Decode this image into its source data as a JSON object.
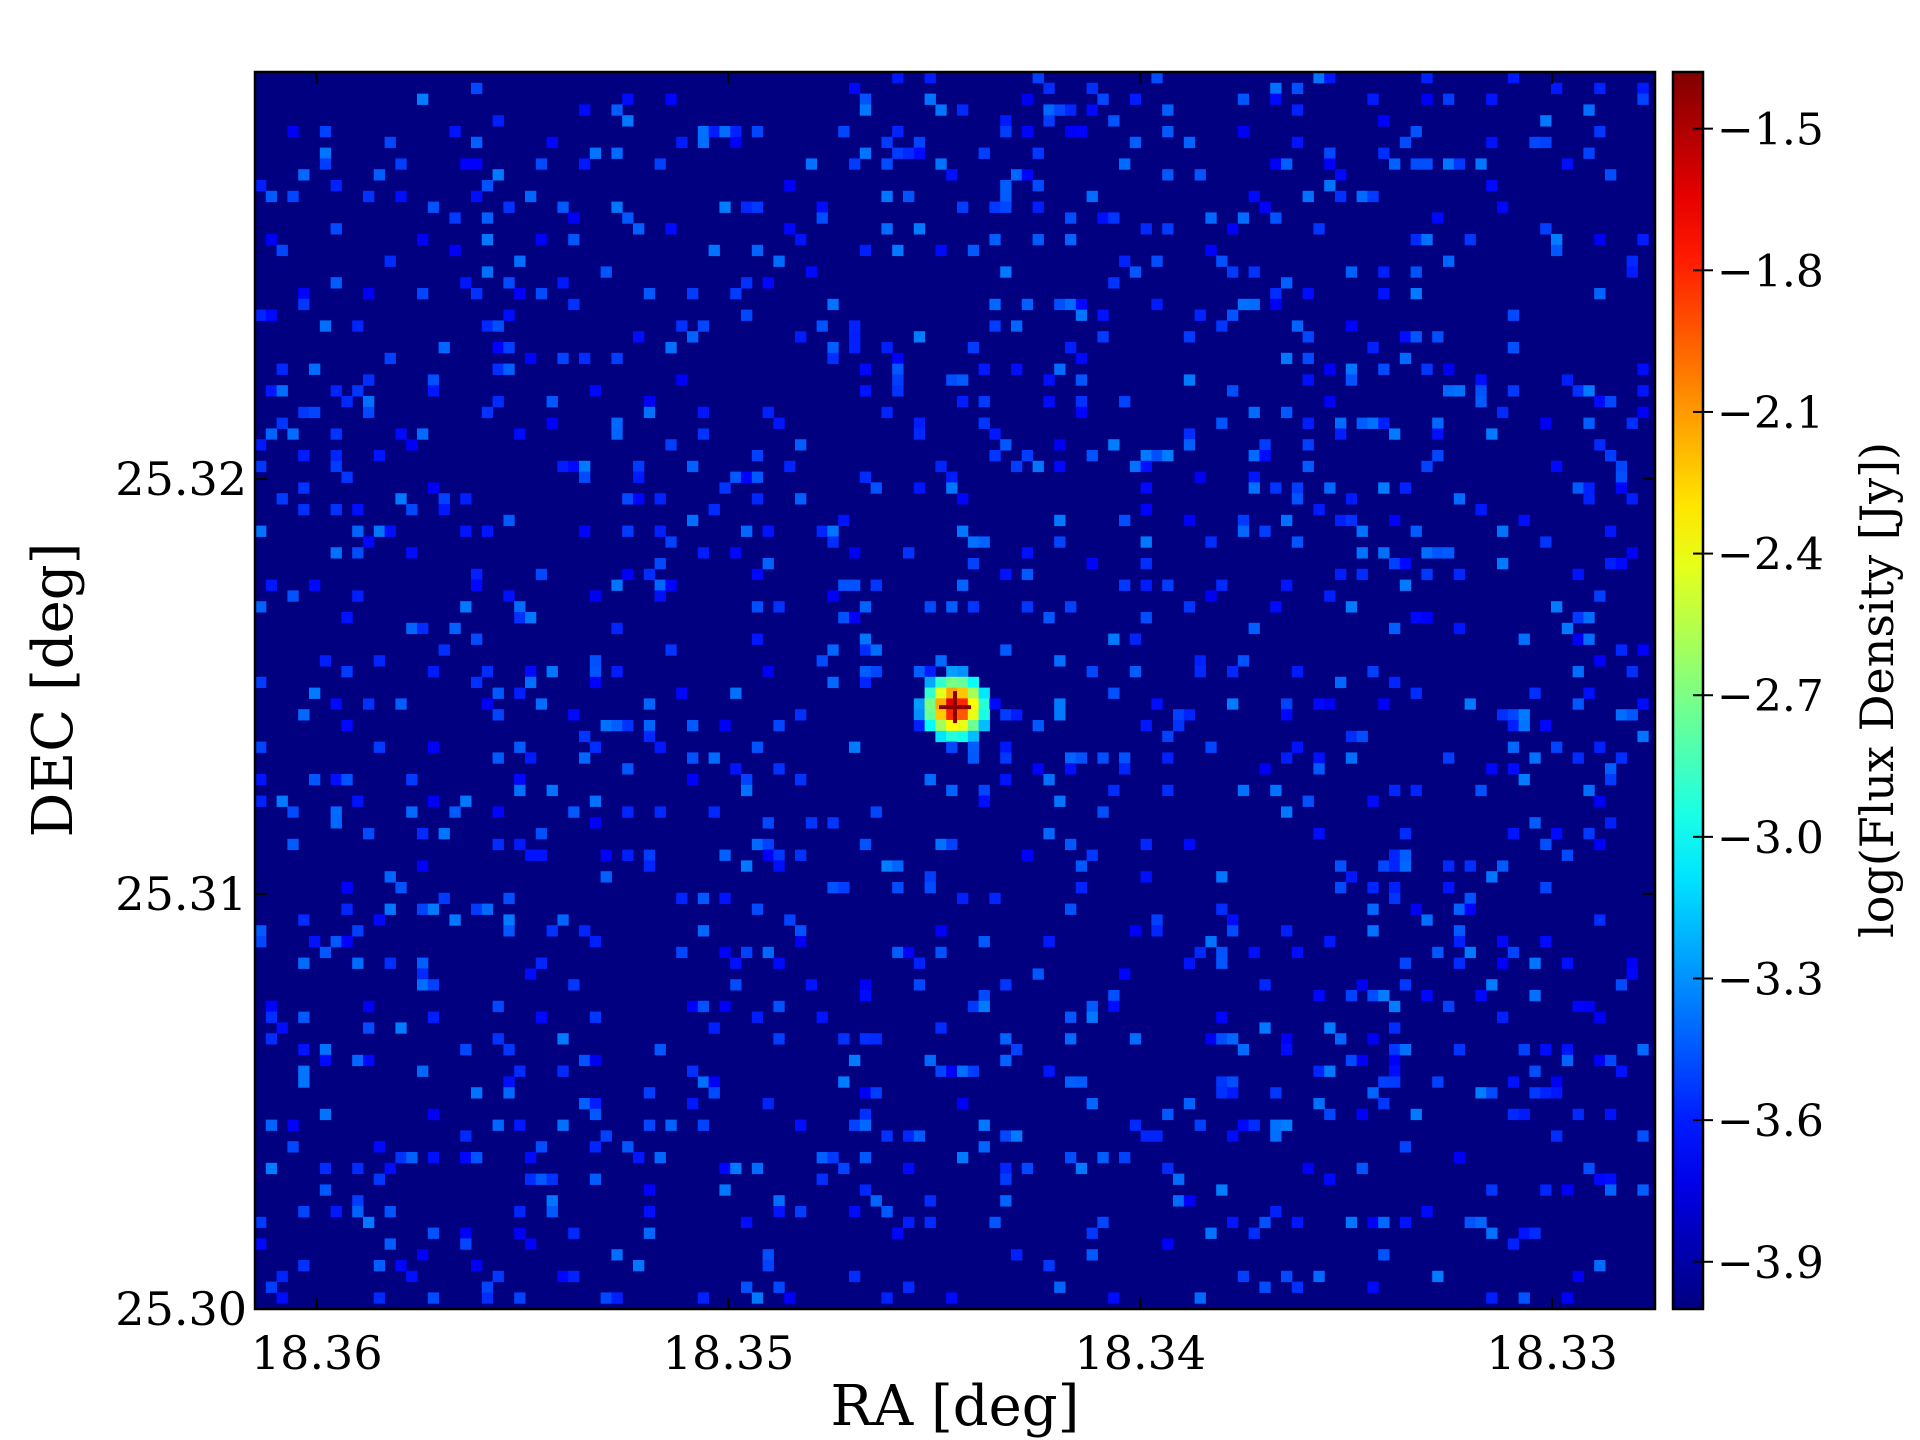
{
  "chart_data": {
    "type": "heatmap",
    "title": "",
    "xlabel": "RA [deg]",
    "ylabel": "DEC [deg]",
    "colorbar_label": "log(Flux Density [Jy])",
    "colormap": "jet",
    "xlim": [
      18.3615,
      18.3275
    ],
    "ylim": [
      25.3,
      25.3298
    ],
    "x_ticks": [
      {
        "value": 18.36,
        "label": "18.36"
      },
      {
        "value": 18.35,
        "label": "18.35"
      },
      {
        "value": 18.34,
        "label": "18.34"
      },
      {
        "value": 18.33,
        "label": "18.33"
      }
    ],
    "y_ticks": [
      {
        "value": 25.3,
        "label": "25.30"
      },
      {
        "value": 25.31,
        "label": "25.31"
      },
      {
        "value": 25.32,
        "label": "25.32"
      }
    ],
    "color_range": [
      -4.0,
      -1.38
    ],
    "colorbar_ticks": [
      {
        "value": -1.5,
        "label": "−1.5"
      },
      {
        "value": -1.8,
        "label": "−1.8"
      },
      {
        "value": -2.1,
        "label": "−2.1"
      },
      {
        "value": -2.4,
        "label": "−2.4"
      },
      {
        "value": -2.7,
        "label": "−2.7"
      },
      {
        "value": -3.0,
        "label": "−3.0"
      },
      {
        "value": -3.3,
        "label": "−3.3"
      },
      {
        "value": -3.6,
        "label": "−3.6"
      },
      {
        "value": -3.9,
        "label": "−3.9"
      }
    ],
    "grid": false,
    "background_level": -4.0,
    "noise_level": -3.7,
    "source": {
      "ra": 18.3445,
      "dec": 25.3145,
      "peak": -1.38
    },
    "marker": {
      "ra": 18.3445,
      "dec": 25.3145,
      "shape": "plus",
      "color": "#8b0000"
    }
  }
}
